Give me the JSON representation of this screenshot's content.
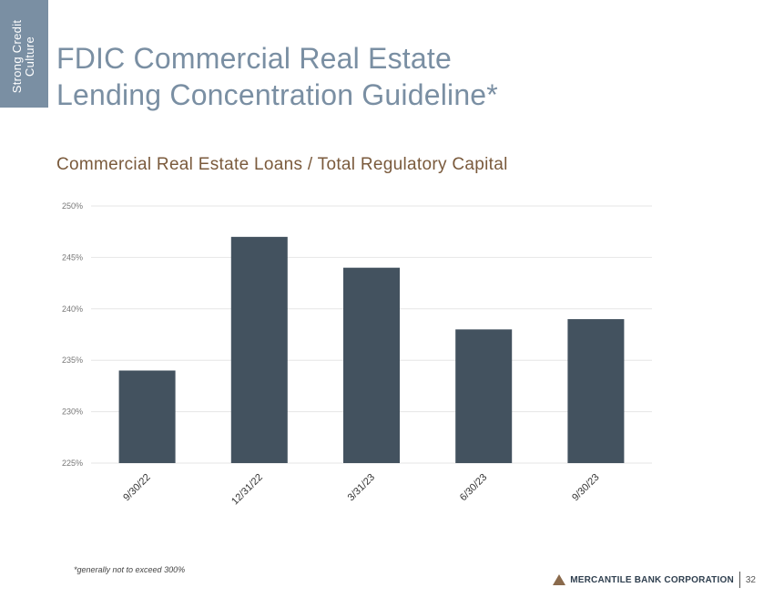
{
  "side_tab": {
    "line1": "Strong Credit",
    "line2": "Culture"
  },
  "header": {
    "title_line1": "FDIC Commercial Real Estate",
    "title_line2": "Lending Concentration Guideline*"
  },
  "colors": {
    "bar": "#43525f",
    "title": "#7a8fa3",
    "subtitle": "#7a5a3c",
    "logo": "#8a6a4c"
  },
  "chart_data": {
    "type": "bar",
    "title": "Commercial Real Estate Loans / Total Regulatory Capital",
    "categories": [
      "9/30/22",
      "12/31/22",
      "3/31/23",
      "6/30/23",
      "9/30/23"
    ],
    "values": [
      234,
      247,
      244,
      238,
      239
    ],
    "unit": "%",
    "ylim": [
      225,
      250
    ],
    "yticks": [
      "225%",
      "230%",
      "235%",
      "240%",
      "245%",
      "250%"
    ],
    "grid": true,
    "legend": "none"
  },
  "footer": {
    "footnote": "*generally not to exceed 300%",
    "company": "MERCANTILE BANK CORPORATION",
    "logo_icon": "triangle-logo-icon",
    "page_number": "32"
  }
}
